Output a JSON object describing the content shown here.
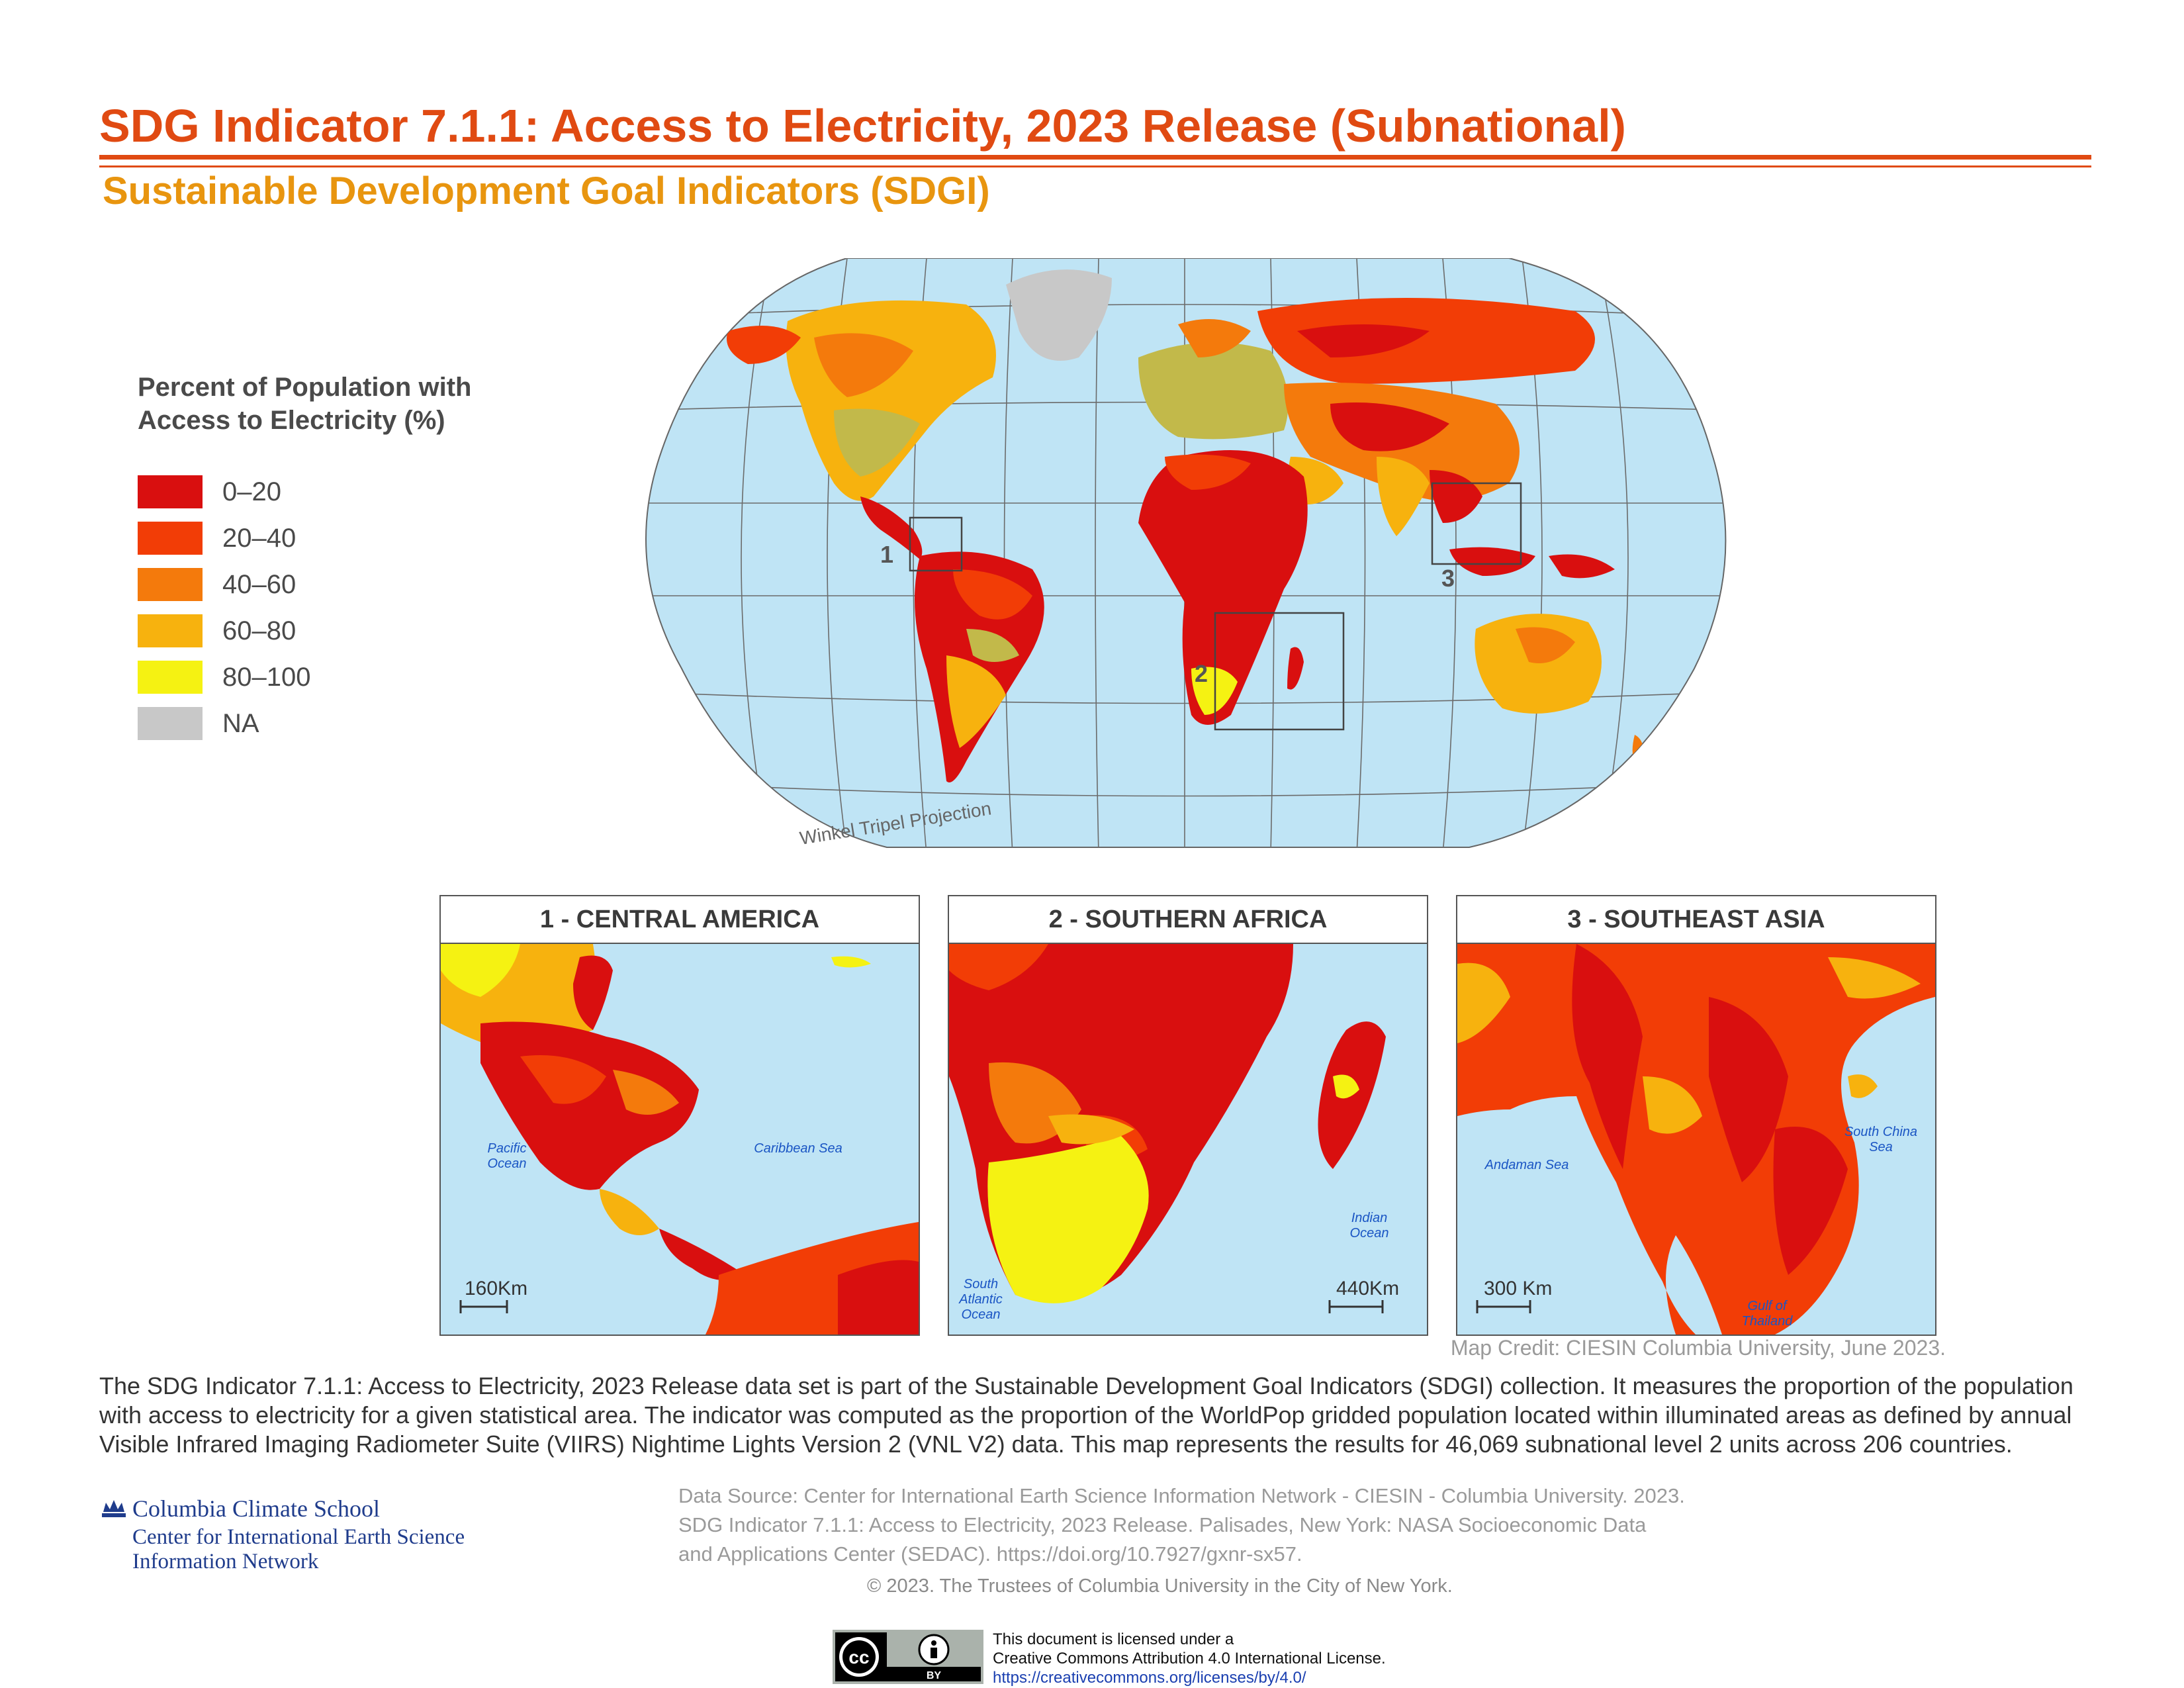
{
  "title": "SDG Indicator 7.1.1: Access to Electricity, 2023 Release (Subnational)",
  "subtitle": "Sustainable Development Goal Indicators (SDGI)",
  "legend": {
    "title_line1": "Percent of Population with",
    "title_line2": "Access to Electricity (%)",
    "items": [
      {
        "label": "0–20",
        "color": "#d90f0f"
      },
      {
        "label": "20–40",
        "color": "#f23d06"
      },
      {
        "label": "40–60",
        "color": "#f47a0c"
      },
      {
        "label": "60–80",
        "color": "#f7b20e"
      },
      {
        "label": "80–100",
        "color": "#f5f212"
      },
      {
        "label": "NA",
        "color": "#c8c8c8"
      }
    ]
  },
  "map": {
    "projection_label": "Winkel Tripel Projection",
    "ocean_color": "#bfe4f5",
    "callout_labels": [
      "1",
      "2",
      "3"
    ]
  },
  "insets": [
    {
      "title": "1  -  CENTRAL AMERICA",
      "scale_label": "160Km",
      "water_labels": [
        {
          "lines": [
            "Pacific",
            "Ocean"
          ]
        },
        {
          "lines": [
            "Caribbean Sea"
          ]
        }
      ]
    },
    {
      "title": "2  -  SOUTHERN AFRICA",
      "scale_label": "440Km",
      "water_labels": [
        {
          "lines": [
            "South",
            "Atlantic",
            "Ocean"
          ]
        },
        {
          "lines": [
            "Indian",
            "Ocean"
          ]
        }
      ]
    },
    {
      "title": "3  -  SOUTHEAST ASIA",
      "scale_label": "300 Km",
      "water_labels": [
        {
          "lines": [
            "Andaman Sea"
          ]
        },
        {
          "lines": [
            "South China",
            "Sea"
          ]
        },
        {
          "lines": [
            "Gulf of",
            "Thailand"
          ]
        }
      ]
    }
  ],
  "credit": "Map Credit: CIESIN Columbia University, June 2023.",
  "description": "The SDG Indicator 7.1.1: Access to Electricity, 2023 Release data set is part of the Sustainable Development Goal Indicators (SDGI) collection. It measures the proportion of the population with access to electricity for a given statistical area. The indicator was computed as the proportion of the WorldPop gridded population located within illuminated areas as defined by annual Visible Infrared Imaging Radiometer Suite (VIIRS) Nightime Lights Version 2 (VNL V2) data. This map represents the results for 46,069 subnational level 2 units across 206 countries.",
  "logo": {
    "line1": "Columbia Climate School",
    "line2": "Center for International Earth Science",
    "line3": "Information Network"
  },
  "data_source": {
    "line1": "Data Source: Center for International Earth Science Information Network - CIESIN - Columbia University. 2023.",
    "line2": "SDG Indicator 7.1.1: Access to Electricity, 2023 Release. Palisades, New York: NASA Socioeconomic Data",
    "line3": "and Applications Center (SEDAC). https://doi.org/10.7927/gxnr-sx57."
  },
  "copyright": "© 2023. The Trustees of Columbia University in the City of New York.",
  "license": {
    "badge_text": "BY",
    "line1": "This document is licensed under a",
    "line2": "Creative Commons Attribution 4.0 International License.",
    "url": "https://creativecommons.org/licenses/by/4.0/"
  }
}
